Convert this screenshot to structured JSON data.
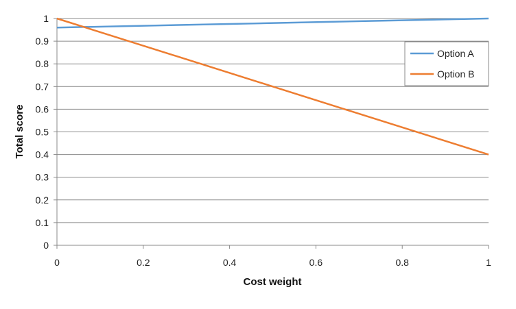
{
  "chart_data": {
    "type": "line",
    "xlabel": "Cost weight",
    "ylabel": "Total score",
    "xlim": [
      0,
      1
    ],
    "ylim": [
      0,
      1
    ],
    "x_ticks": [
      "0",
      "0.2",
      "0.4",
      "0.6",
      "0.8",
      "1"
    ],
    "y_ticks": [
      "0",
      "0.1",
      "0.2",
      "0.3",
      "0.4",
      "0.5",
      "0.6",
      "0.7",
      "0.8",
      "0.9",
      "1"
    ],
    "grid": "horizontal",
    "legend_position": "top-right",
    "series": [
      {
        "name": "Option A",
        "color": "#5B9BD5",
        "x": [
          0,
          1
        ],
        "y": [
          0.96,
          1.0
        ]
      },
      {
        "name": "Option B",
        "color": "#ED7D31",
        "x": [
          0,
          1
        ],
        "y": [
          1.0,
          0.4
        ]
      }
    ]
  }
}
